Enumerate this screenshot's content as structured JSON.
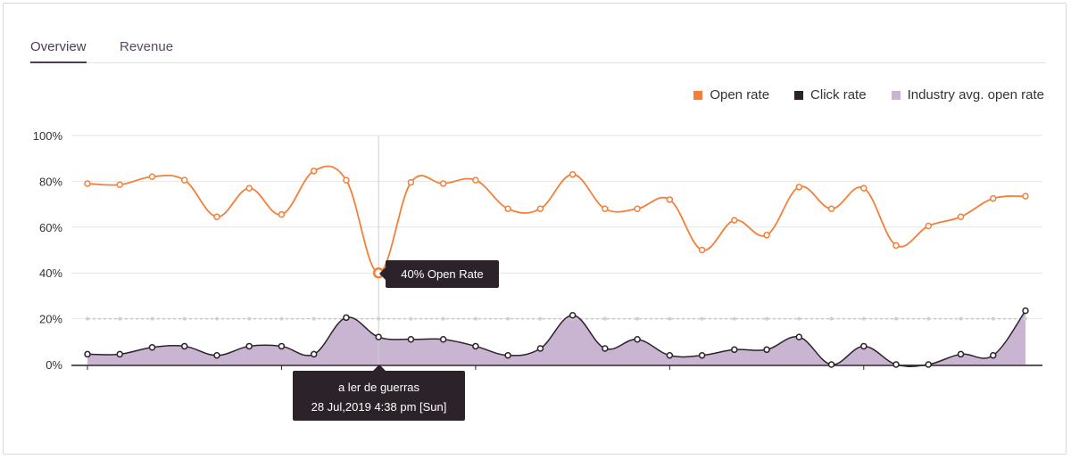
{
  "tabs": [
    {
      "label": "Overview",
      "active": true
    },
    {
      "label": "Revenue",
      "active": false
    }
  ],
  "legend": [
    {
      "label": "Open rate",
      "color": "#f47f38"
    },
    {
      "label": "Click rate",
      "color": "#2b2329"
    },
    {
      "label": "Industry avg. open rate",
      "color": "#c9b5d2"
    }
  ],
  "tooltip": {
    "value_label": "40% Open Rate",
    "title": "a ler de guerras",
    "datetime": "28 Jul,2019 4:38 pm [Sun]"
  },
  "chart_data": {
    "type": "line",
    "title": "",
    "xlabel": "",
    "ylabel": "",
    "ylim": [
      0,
      100
    ],
    "yticks": [
      "0%",
      "20%",
      "40%",
      "60%",
      "80%",
      "100%"
    ],
    "ytick_values": [
      0,
      20,
      40,
      60,
      80,
      100
    ],
    "highlight_index": 9,
    "series": [
      {
        "name": "Open rate",
        "type": "line",
        "color": "#f47f38",
        "values": [
          79,
          78.5,
          82,
          80.5,
          64.5,
          77,
          65.5,
          84.5,
          80.5,
          40,
          79.5,
          79,
          80.5,
          68,
          68,
          83,
          68,
          68,
          72,
          50,
          63,
          56.5,
          77.5,
          68,
          77,
          52,
          60.5,
          64.5,
          72.5,
          73.5
        ]
      },
      {
        "name": "Click rate",
        "type": "area",
        "color": "#2b2329",
        "fill": "#c9b5d2",
        "values": [
          4.5,
          4.5,
          7.5,
          8,
          4,
          8,
          8,
          4.5,
          20.5,
          12,
          11,
          11,
          8,
          4,
          7,
          21.5,
          7,
          11,
          4,
          4,
          6.5,
          6.5,
          12,
          0,
          8,
          0,
          0,
          4.5,
          4,
          23.5
        ]
      },
      {
        "name": "Industry avg. open rate",
        "type": "dashed",
        "color": "#c9c9c9",
        "values": [
          20,
          20,
          20,
          20,
          20,
          20,
          20,
          20,
          20,
          20,
          20,
          20,
          20,
          20,
          20,
          20,
          20,
          20,
          20,
          20,
          20,
          20,
          20,
          20,
          20,
          20,
          20,
          20,
          20,
          20
        ]
      }
    ]
  }
}
